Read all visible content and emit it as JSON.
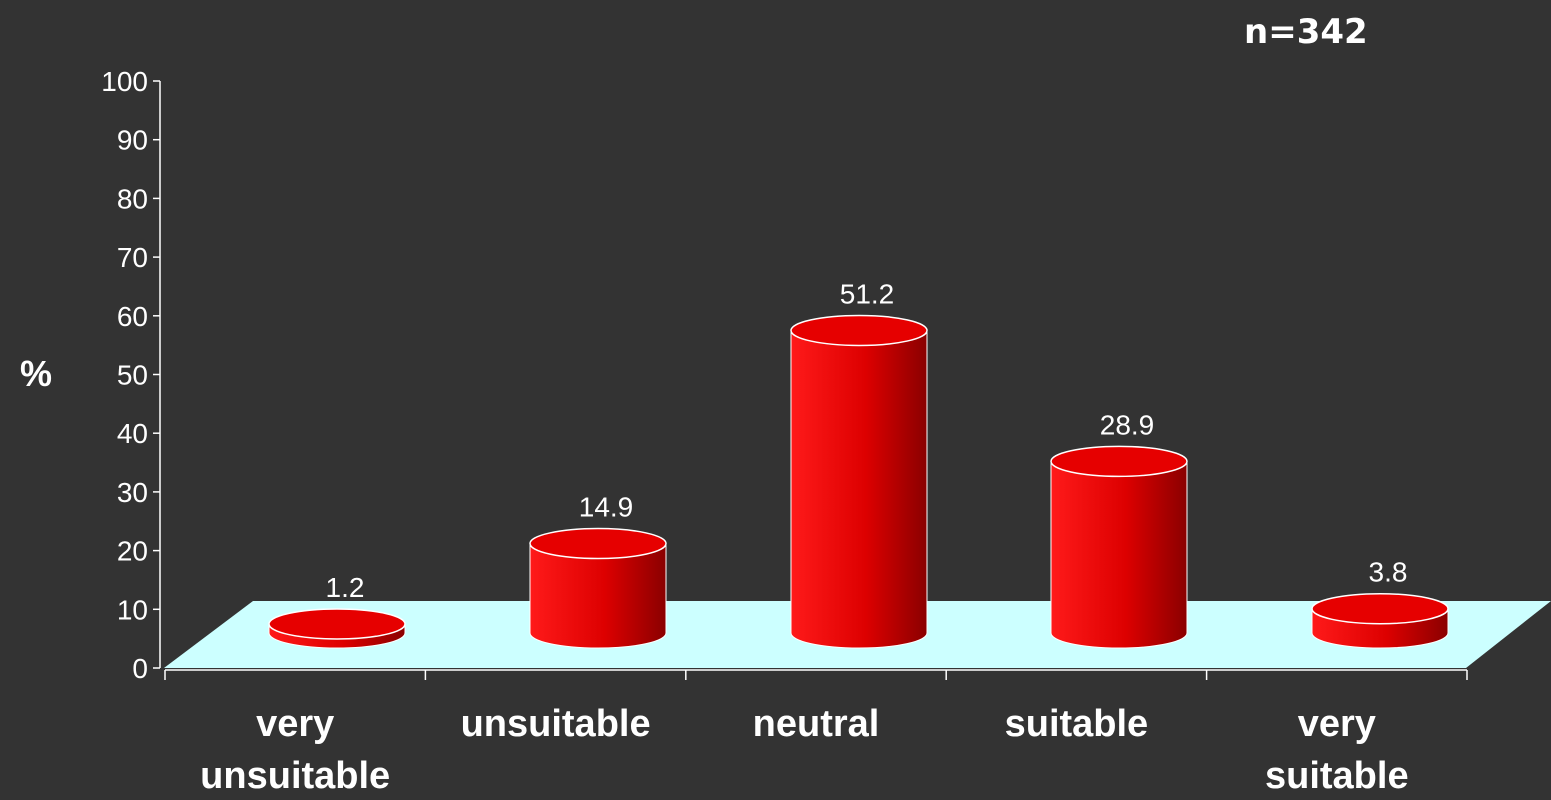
{
  "chart_data": {
    "type": "bar",
    "style": "3d-cylinder",
    "categories": [
      [
        "very",
        "unsuitable"
      ],
      [
        "unsuitable"
      ],
      [
        "neutral"
      ],
      [
        "suitable"
      ],
      [
        "very",
        "suitable"
      ]
    ],
    "values": [
      1.2,
      14.9,
      51.2,
      28.9,
      3.8
    ],
    "data_labels": [
      "1.2",
      "14.9",
      "51.2",
      "28.9",
      "3.8"
    ],
    "ylabel": "%",
    "ylim": [
      0,
      100
    ],
    "yticks": [
      0,
      10,
      20,
      30,
      40,
      50,
      60,
      70,
      80,
      90,
      100
    ],
    "annotation": "n=342",
    "grid": false,
    "legend": "none",
    "colors": {
      "background": "#333333",
      "floor": "#ccffff",
      "bar": "#e00000",
      "bar_dark": "#8a0000",
      "bar_light": "#ff1a1a",
      "text": "#ffffff"
    }
  }
}
